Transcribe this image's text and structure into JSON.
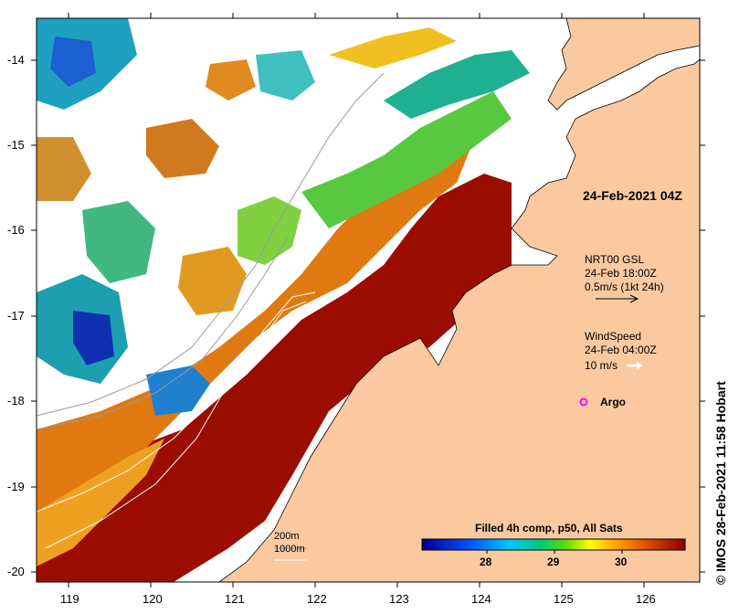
{
  "map": {
    "date_label": "24-Feb-2021 04Z",
    "x_ticks": [
      "119",
      "120",
      "121",
      "122",
      "123",
      "124",
      "125",
      "126"
    ],
    "y_ticks": [
      "-14",
      "-15",
      "-16",
      "-17",
      "-18",
      "-19",
      "-20"
    ],
    "current_legend": {
      "line1": "NRT00 GSL",
      "line2": "24-Feb 18:00Z",
      "line3": "0.5m/s (1kt 24h)"
    },
    "wind_legend": {
      "line1": "WindSpeed",
      "line2": "24-Feb 04:00Z",
      "line3": "10 m/s"
    },
    "argo_label": "Argo",
    "colorbar": {
      "title": "Filled 4h comp, p50, All Sats",
      "ticks": [
        "28",
        "29",
        "30"
      ]
    },
    "depth_legend": {
      "line1": "200m",
      "line2": "1000m"
    },
    "credit": "IMOS 28-Feb-2021 11:58 Hobart",
    "colors": {
      "land": "#fac9a0",
      "cold": "#00008b",
      "warm": "#8b0000",
      "argo": "#ff00ff"
    }
  }
}
